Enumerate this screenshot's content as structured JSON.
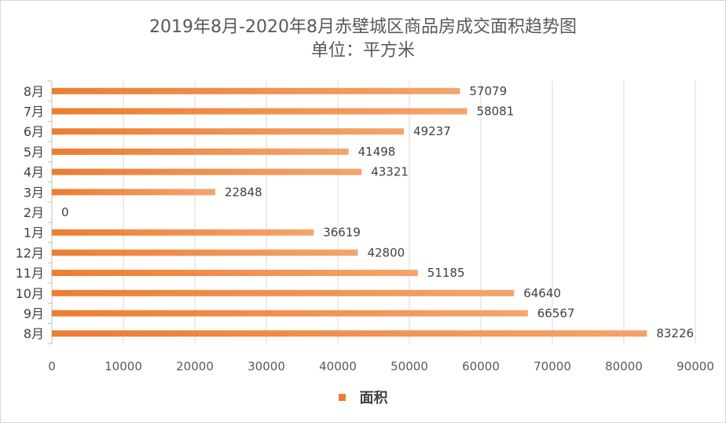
{
  "chart_data": {
    "type": "bar",
    "orientation": "horizontal",
    "title": "2019年8月-2020年8月赤壁城区商品房成交面积趋势图",
    "subtitle": "单位：平方米",
    "categories": [
      "8月",
      "9月",
      "10月",
      "11月",
      "12月",
      "1月",
      "2月",
      "3月",
      "4月",
      "5月",
      "6月",
      "7月",
      "8月"
    ],
    "series": [
      {
        "name": "面积",
        "values": [
          83226,
          66567,
          64640,
          51185,
          42800,
          36619,
          0,
          22848,
          43321,
          41498,
          49237,
          58081,
          57079
        ]
      }
    ],
    "xlim": [
      0,
      90000
    ],
    "xticks": [
      "0",
      "10000",
      "20000",
      "30000",
      "40000",
      "50000",
      "60000",
      "70000",
      "80000",
      "90000"
    ],
    "grid": true,
    "legend_position": "bottom",
    "bar_color": "#ed7d31",
    "bar_color_light": "#f4a46c"
  }
}
